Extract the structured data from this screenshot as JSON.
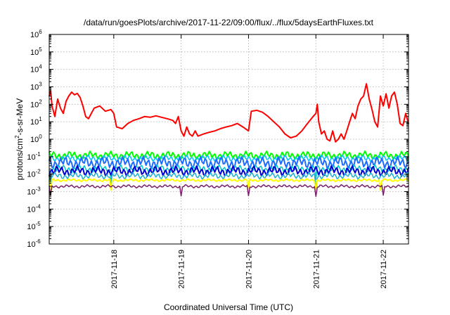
{
  "chart_data": {
    "type": "line",
    "title": "/data/run/goesPlots/archive/2017-11-22/09:00/flux/../flux/5daysEarthFluxes.txt",
    "xlabel": "Coordinated Universal Time (UTC)",
    "ylabel": {
      "base": "protons/cm",
      "sup": "2",
      "rest": "-s-sr-MeV"
    },
    "x_start": "2017-11-17T01:00",
    "xlim": [
      "2017-11-17T01:00",
      "2017-11-22T09:00"
    ],
    "ylim": [
      1e-06,
      1000000.0
    ],
    "yscale": "log",
    "grid": true,
    "legend": "none",
    "x_ticks": [
      {
        "date": "2017-11-18T00:00",
        "label": "2017-11-18"
      },
      {
        "date": "2017-11-19T00:00",
        "label": "2017-11-19"
      },
      {
        "date": "2017-11-20T00:00",
        "label": "2017-11-20"
      },
      {
        "date": "2017-11-21T00:00",
        "label": "2017-11-21"
      },
      {
        "date": "2017-11-22T00:00",
        "label": "2017-11-22"
      }
    ],
    "y_ticks": [
      {
        "value": 1e-06,
        "base": "10",
        "exp": "-6"
      },
      {
        "value": 1e-05,
        "base": "10",
        "exp": "-5"
      },
      {
        "value": 0.0001,
        "base": "10",
        "exp": "-4"
      },
      {
        "value": 0.001,
        "base": "10",
        "exp": "-3"
      },
      {
        "value": 0.01,
        "base": "10",
        "exp": "-2"
      },
      {
        "value": 0.1,
        "base": "10",
        "exp": "-1"
      },
      {
        "value": 1,
        "base": "10",
        "exp": "0"
      },
      {
        "value": 10,
        "base": "10",
        "exp": "1"
      },
      {
        "value": 100,
        "base": "10",
        "exp": "2"
      },
      {
        "value": 1000,
        "base": "10",
        "exp": "3"
      },
      {
        "value": 10000,
        "base": "10",
        "exp": "4"
      },
      {
        "value": 100000,
        "base": "10",
        "exp": "5"
      },
      {
        "value": 1000000,
        "base": "10",
        "exp": "6"
      }
    ],
    "series": [
      {
        "color": "#ff0000",
        "width": 2,
        "points": [
          [
            "2017-11-17T01:00",
            300
          ],
          [
            "2017-11-17T01:30",
            600
          ],
          [
            "2017-11-17T02:00",
            80
          ],
          [
            "2017-11-17T03:00",
            20
          ],
          [
            "2017-11-17T04:00",
            200
          ],
          [
            "2017-11-17T05:00",
            60
          ],
          [
            "2017-11-17T06:00",
            30
          ],
          [
            "2017-11-17T07:00",
            150
          ],
          [
            "2017-11-17T08:00",
            300
          ],
          [
            "2017-11-17T09:00",
            500
          ],
          [
            "2017-11-17T10:00",
            350
          ],
          [
            "2017-11-17T11:00",
            420
          ],
          [
            "2017-11-17T12:00",
            250
          ],
          [
            "2017-11-17T13:00",
            80
          ],
          [
            "2017-11-17T14:00",
            20
          ],
          [
            "2017-11-17T15:00",
            15
          ],
          [
            "2017-11-17T17:00",
            60
          ],
          [
            "2017-11-17T19:00",
            80
          ],
          [
            "2017-11-17T21:00",
            40
          ],
          [
            "2017-11-17T23:00",
            50
          ],
          [
            "2017-11-18T00:00",
            30
          ],
          [
            "2017-11-18T01:00",
            5
          ],
          [
            "2017-11-18T03:00",
            4
          ],
          [
            "2017-11-18T05:00",
            8
          ],
          [
            "2017-11-18T07:00",
            12
          ],
          [
            "2017-11-18T09:00",
            15
          ],
          [
            "2017-11-18T11:00",
            20
          ],
          [
            "2017-11-18T13:00",
            18
          ],
          [
            "2017-11-18T15:00",
            22
          ],
          [
            "2017-11-18T17:00",
            18
          ],
          [
            "2017-11-18T19:00",
            15
          ],
          [
            "2017-11-18T21:00",
            12
          ],
          [
            "2017-11-18T22:00",
            8
          ],
          [
            "2017-11-18T23:00",
            20
          ],
          [
            "2017-11-19T00:00",
            3
          ],
          [
            "2017-11-19T01:00",
            1.5
          ],
          [
            "2017-11-19T02:00",
            5
          ],
          [
            "2017-11-19T03:00",
            2
          ],
          [
            "2017-11-19T04:00",
            1.5
          ],
          [
            "2017-11-19T05:00",
            3
          ],
          [
            "2017-11-19T06:00",
            1.5
          ],
          [
            "2017-11-19T08:00",
            2
          ],
          [
            "2017-11-19T10:00",
            2.5
          ],
          [
            "2017-11-19T12:00",
            3
          ],
          [
            "2017-11-19T14:00",
            4
          ],
          [
            "2017-11-19T16:00",
            5
          ],
          [
            "2017-11-19T18:00",
            6
          ],
          [
            "2017-11-19T20:00",
            8
          ],
          [
            "2017-11-19T22:00",
            5
          ],
          [
            "2017-11-20T00:00",
            3
          ],
          [
            "2017-11-20T01:00",
            40
          ],
          [
            "2017-11-20T03:00",
            45
          ],
          [
            "2017-11-20T05:00",
            35
          ],
          [
            "2017-11-20T07:00",
            20
          ],
          [
            "2017-11-20T09:00",
            10
          ],
          [
            "2017-11-20T11:00",
            5
          ],
          [
            "2017-11-20T13:00",
            2
          ],
          [
            "2017-11-20T15:00",
            1.2
          ],
          [
            "2017-11-20T17:00",
            1.5
          ],
          [
            "2017-11-20T19:00",
            3
          ],
          [
            "2017-11-20T21:00",
            8
          ],
          [
            "2017-11-20T23:00",
            20
          ],
          [
            "2017-11-21T00:00",
            30
          ],
          [
            "2017-11-21T00:30",
            100
          ],
          [
            "2017-11-21T01:00",
            10
          ],
          [
            "2017-11-21T02:00",
            2
          ],
          [
            "2017-11-21T03:00",
            3
          ],
          [
            "2017-11-21T04:00",
            1
          ],
          [
            "2017-11-21T05:00",
            0.8
          ],
          [
            "2017-11-21T06:00",
            3
          ],
          [
            "2017-11-21T07:00",
            0.7
          ],
          [
            "2017-11-21T08:00",
            1
          ],
          [
            "2017-11-21T09:00",
            2
          ],
          [
            "2017-11-21T10:00",
            1
          ],
          [
            "2017-11-21T11:00",
            3
          ],
          [
            "2017-11-21T12:00",
            10
          ],
          [
            "2017-11-21T13:00",
            30
          ],
          [
            "2017-11-21T14:00",
            15
          ],
          [
            "2017-11-21T15:00",
            80
          ],
          [
            "2017-11-21T16:00",
            200
          ],
          [
            "2017-11-21T17:00",
            300
          ],
          [
            "2017-11-21T18:00",
            1500
          ],
          [
            "2017-11-21T19:00",
            200
          ],
          [
            "2017-11-21T20:00",
            50
          ],
          [
            "2017-11-21T21:00",
            10
          ],
          [
            "2017-11-21T22:00",
            5
          ],
          [
            "2017-11-21T23:00",
            300
          ],
          [
            "2017-11-22T00:00",
            80
          ],
          [
            "2017-11-22T01:00",
            400
          ],
          [
            "2017-11-22T02:00",
            60
          ],
          [
            "2017-11-22T03:00",
            300
          ],
          [
            "2017-11-22T04:00",
            500
          ],
          [
            "2017-11-22T05:00",
            100
          ],
          [
            "2017-11-22T06:00",
            8
          ],
          [
            "2017-11-22T07:00",
            6
          ],
          [
            "2017-11-22T08:00",
            30
          ],
          [
            "2017-11-22T09:00",
            8
          ]
        ]
      },
      {
        "color": "#00ff00",
        "width": 2,
        "level": 0.12,
        "variation": 0.12,
        "dips": []
      },
      {
        "color": "#00bfff",
        "width": 1.5,
        "level": 0.08,
        "variation": 0.1,
        "dips": []
      },
      {
        "color": "#1e6cff",
        "width": 2,
        "level": 0.045,
        "variation": 0.18,
        "dips": []
      },
      {
        "color": "#00c8c8",
        "width": 1.5,
        "level": 0.02,
        "variation": 0.12,
        "dips": [
          "2017-11-17T01:30",
          "2017-11-17T23:00",
          "2017-11-21T00:00"
        ]
      },
      {
        "color": "#0000d0",
        "width": 2,
        "level": 0.015,
        "variation": 0.15,
        "dips": []
      },
      {
        "color": "#20b0d0",
        "width": 1.5,
        "level": 0.008,
        "variation": 0.1,
        "dips": [
          "2017-11-17T23:00",
          "2017-11-21T00:00"
        ]
      },
      {
        "color": "#ffff00",
        "width": 2,
        "level": 0.0045,
        "variation": 0.04,
        "dips": [
          "2017-11-17T01:30",
          "2017-11-17T23:00",
          "2017-11-20T00:00",
          "2017-11-21T00:00",
          "2017-11-21T23:00"
        ]
      },
      {
        "color": "#7a1f6a",
        "width": 1.5,
        "level": 0.002,
        "variation": 0.05,
        "dips": [
          "2017-11-17T01:30",
          "2017-11-19T00:00",
          "2017-11-20T00:00",
          "2017-11-21T00:00",
          "2017-11-22T00:00"
        ]
      }
    ]
  }
}
